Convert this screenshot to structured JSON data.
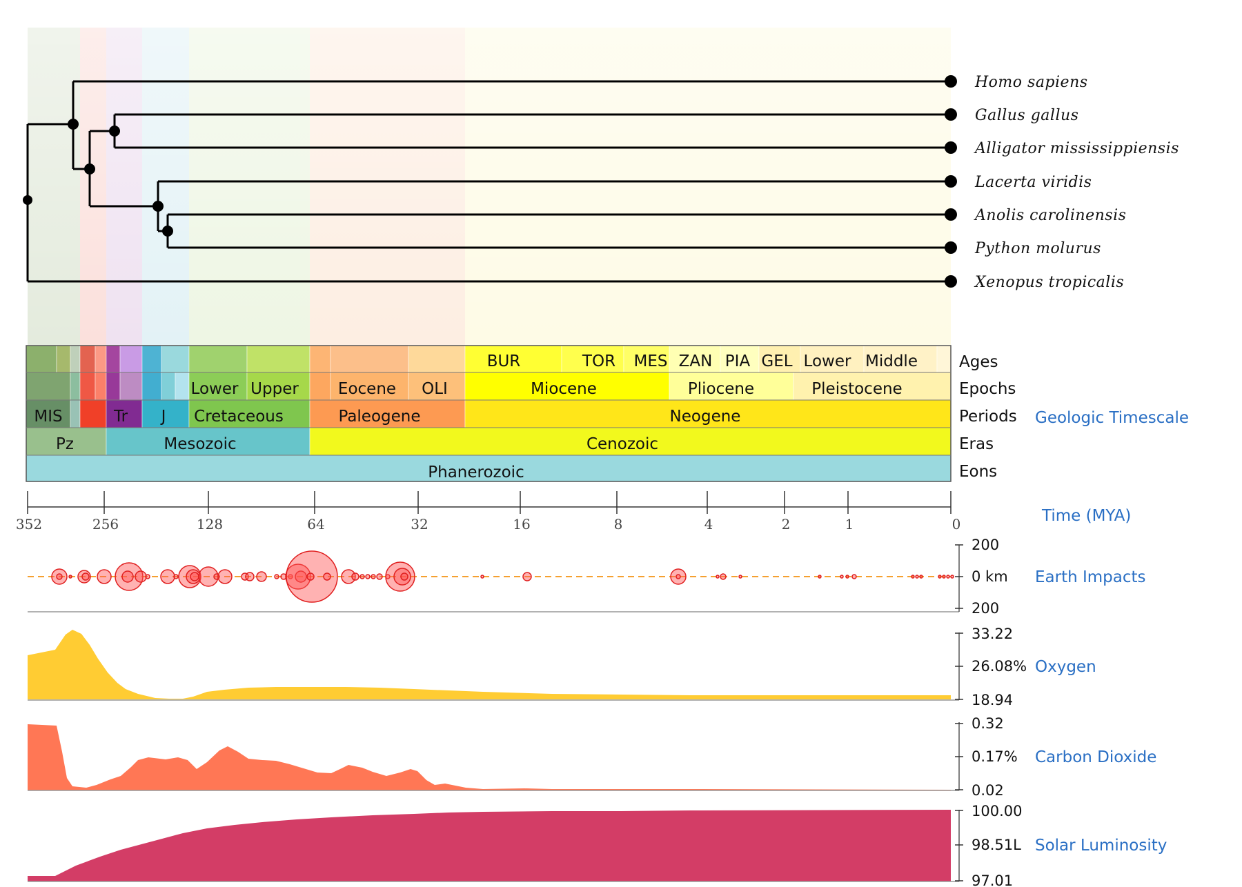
{
  "tree": {
    "species": [
      "Homo sapiens",
      "Gallus gallus",
      "Alligator mississippiensis",
      "Lacerta viridis",
      "Anolis carolinensis",
      "Python molurus",
      "Xenopus tropicalis"
    ]
  },
  "timescale": {
    "title": "Geologic Timescale",
    "row_labels": [
      "Ages",
      "Epochs",
      "Periods",
      "Eras",
      "Eons"
    ],
    "ages": [
      "BUR",
      "TOR",
      "MES",
      "ZAN",
      "PIA",
      "GEL",
      "Lower",
      "Middle"
    ],
    "epochs": [
      "Lower",
      "Upper",
      "Eocene",
      "OLI",
      "Miocene",
      "Pliocene",
      "Pleistocene"
    ],
    "periods": [
      "MIS",
      "Tr",
      "J",
      "Cretaceous",
      "Paleogene",
      "Neogene"
    ],
    "eras": [
      "Pz",
      "Mesozoic",
      "Cenozoic"
    ],
    "eons": [
      "Phanerozoic"
    ],
    "colors": {
      "eon": "#9ad9de",
      "paleozoic": "#99c08d",
      "mesozoic": "#67c5ca",
      "cenozoic": "#f2f91d",
      "carboniferous": "#67a599",
      "permian": "#f04028",
      "triassic": "#812b92",
      "jurassic": "#34b2c9",
      "cretaceous": "#7fc64e",
      "paleogene": "#fd9a52",
      "neogene": "#ffe619"
    }
  },
  "axis": {
    "title": "Time (MYA)",
    "ticks": [
      "352",
      "256",
      "128",
      "64",
      "32",
      "16",
      "8",
      "4",
      "2",
      "1",
      "0"
    ]
  },
  "panels": [
    {
      "title": "Earth Impacts",
      "top": "200",
      "mid": "0 km",
      "bottom": "200",
      "color": "#ff3333"
    },
    {
      "title": "Oxygen",
      "top": "33.22",
      "mid": "26.08%",
      "bottom": "18.94",
      "color": "#ffcc33"
    },
    {
      "title": "Carbon Dioxide",
      "top": "0.32",
      "mid": "0.17%",
      "bottom": "0.02",
      "color": "#ff7755"
    },
    {
      "title": "Solar Luminosity",
      "top": "100.00",
      "mid": "98.51L",
      "bottom": "97.01",
      "color": "#d33d66"
    }
  ]
}
